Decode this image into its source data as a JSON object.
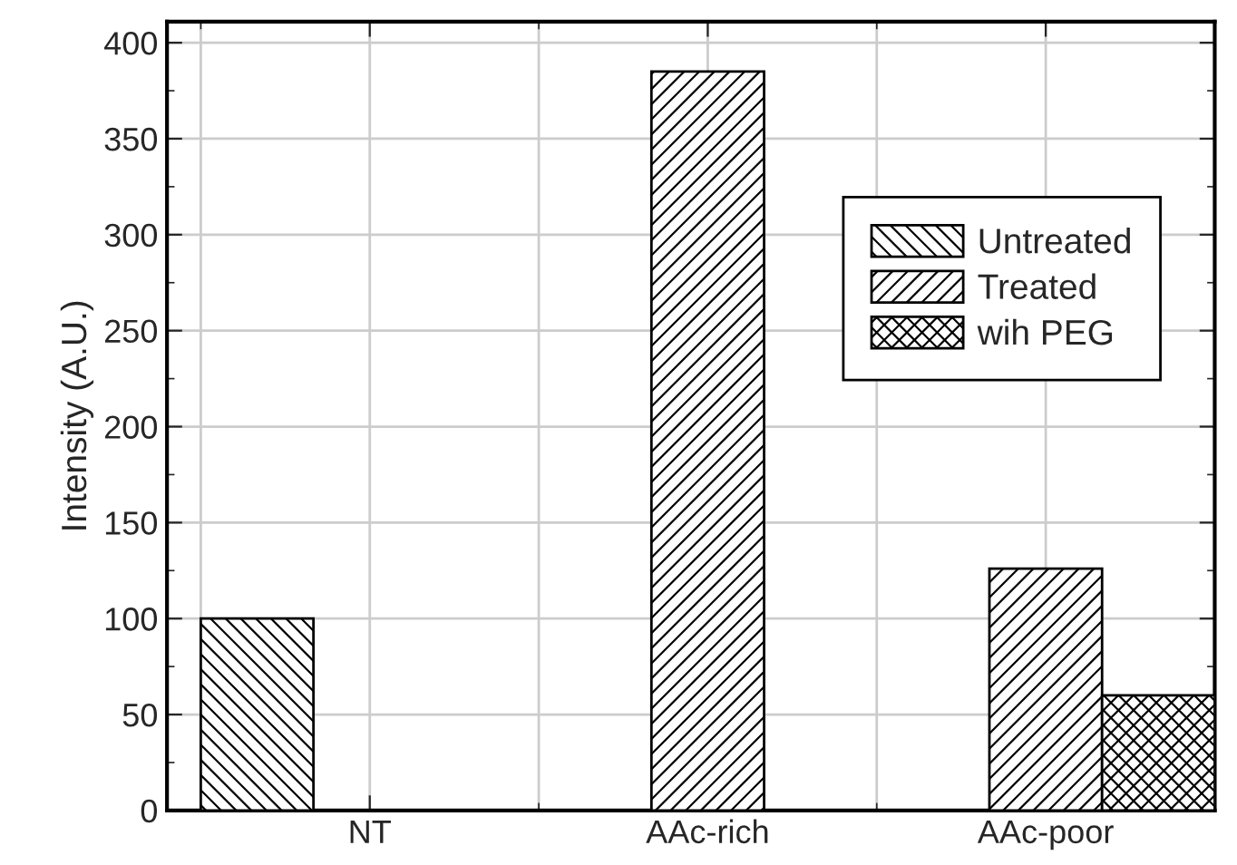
{
  "chart_data": {
    "type": "bar",
    "ylabel": "Intensity (A.U.)",
    "categories": [
      "NT",
      "AAc-rich",
      "AAc-poor"
    ],
    "series": [
      {
        "name": "Untreated",
        "color": "#000000",
        "values": [
          100,
          null,
          null
        ]
      },
      {
        "name": "Treated",
        "color": "#000000",
        "values": [
          null,
          385,
          126
        ]
      },
      {
        "name": "wih PEG",
        "color": "#000000",
        "values": [
          null,
          null,
          60
        ]
      }
    ],
    "ylim": [
      0,
      411
    ],
    "yticks": [
      0,
      50,
      100,
      150,
      200,
      250,
      300,
      350,
      400
    ],
    "grid": true,
    "legend": "top right"
  }
}
